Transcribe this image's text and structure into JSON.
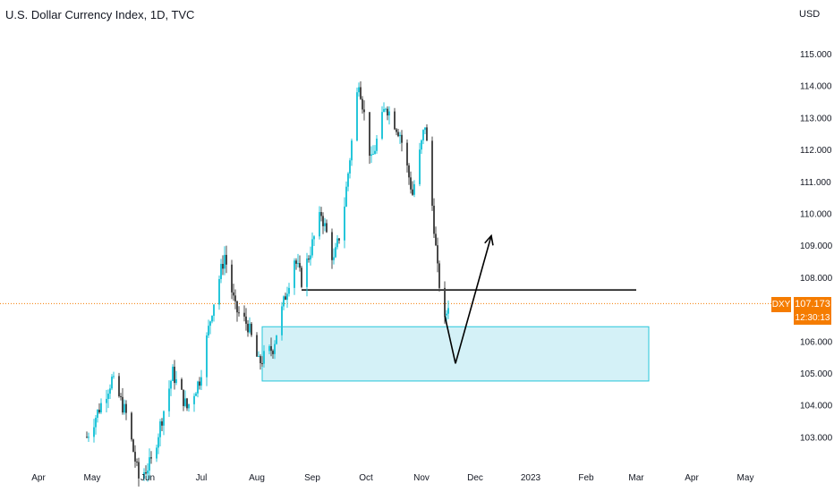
{
  "header": {
    "title": "U.S. Dollar Currency Index, 1D, TVC",
    "currency": "USD"
  },
  "colors": {
    "up": "#26c6da",
    "down": "#4a4a4a",
    "zone_fill": "#d4f1f7",
    "zone_stroke": "#26c6da",
    "accent": "#f57c00"
  },
  "price_badge": {
    "symbol": "DXY",
    "price": "107.173",
    "countdown": "12:30:13"
  },
  "chart_data": {
    "type": "candlestick",
    "title": "U.S. Dollar Currency Index, 1D, TVC",
    "y_unit": "USD",
    "x_ticks": [
      "Apr",
      "May",
      "Jun",
      "Jul",
      "Aug",
      "Sep",
      "Oct",
      "Nov",
      "Dec",
      "2023",
      "Feb",
      "Mar",
      "Apr",
      "May"
    ],
    "y_ticks": [
      "115.000",
      "114.000",
      "113.000",
      "112.000",
      "111.000",
      "110.000",
      "109.000",
      "108.000",
      "106.000",
      "105.000",
      "104.000",
      "103.000"
    ],
    "ylim": [
      102.5,
      116.0
    ],
    "last_price": 107.173,
    "path_keypoints": [
      {
        "date": "2022-04-28",
        "close": 103.0
      },
      {
        "date": "2022-05-12",
        "close": 104.8
      },
      {
        "date": "2022-05-20",
        "close": 103.7
      },
      {
        "date": "2022-05-27",
        "close": 101.7
      },
      {
        "date": "2022-06-03",
        "close": 102.2
      },
      {
        "date": "2022-06-15",
        "close": 105.0
      },
      {
        "date": "2022-06-23",
        "close": 103.9
      },
      {
        "date": "2022-06-30",
        "close": 104.8
      },
      {
        "date": "2022-07-07",
        "close": 107.0
      },
      {
        "date": "2022-07-14",
        "close": 108.7
      },
      {
        "date": "2022-07-20",
        "close": 107.0
      },
      {
        "date": "2022-07-27",
        "close": 106.5
      },
      {
        "date": "2022-08-02",
        "close": 105.3
      },
      {
        "date": "2022-08-10",
        "close": 105.8
      },
      {
        "date": "2022-08-22",
        "close": 108.6
      },
      {
        "date": "2022-08-26",
        "close": 107.9
      },
      {
        "date": "2022-09-06",
        "close": 110.0
      },
      {
        "date": "2022-09-13",
        "close": 108.5
      },
      {
        "date": "2022-09-18",
        "close": 109.8
      },
      {
        "date": "2022-09-27",
        "close": 114.2
      },
      {
        "date": "2022-10-04",
        "close": 111.6
      },
      {
        "date": "2022-10-12",
        "close": 113.4
      },
      {
        "date": "2022-10-20",
        "close": 112.5
      },
      {
        "date": "2022-10-27",
        "close": 110.6
      },
      {
        "date": "2022-11-03",
        "close": 112.8
      },
      {
        "date": "2022-11-08",
        "close": 109.6
      },
      {
        "date": "2022-11-10",
        "close": 108.2
      },
      {
        "date": "2022-11-14",
        "close": 106.6
      },
      {
        "date": "2022-11-16",
        "close": 107.2
      }
    ],
    "annotations": [
      {
        "type": "horizontal_line",
        "price": 107.6,
        "from": "2022-08-26",
        "to": "2023-03-01"
      },
      {
        "type": "zone",
        "low": 104.75,
        "high": 106.45,
        "from": "2022-08-04",
        "to": "2023-03-08"
      },
      {
        "type": "polyline_arrow",
        "points": [
          {
            "date": "2022-11-14",
            "price": 106.8
          },
          {
            "date": "2022-11-20",
            "price": 105.3
          },
          {
            "date": "2022-12-10",
            "price": 109.3
          }
        ]
      }
    ]
  }
}
